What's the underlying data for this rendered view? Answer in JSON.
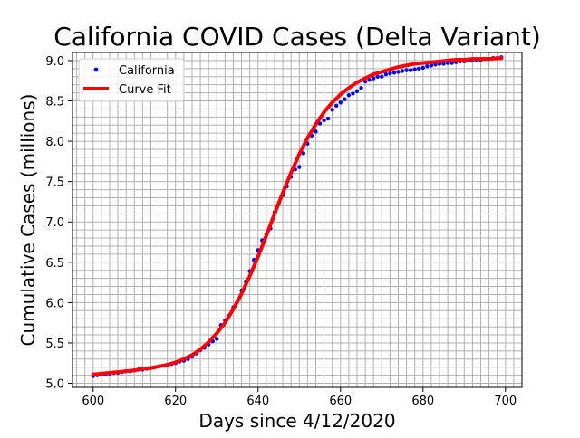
{
  "chart_data": {
    "type": "line",
    "title": "California COVID Cases (Delta Variant)",
    "xlabel": "Days since 4/12/2020",
    "ylabel": "Cumulative Cases (millions)",
    "xlim": [
      595,
      704
    ],
    "ylim": [
      4.95,
      9.1
    ],
    "xticks": [
      600,
      620,
      640,
      660,
      680,
      700
    ],
    "yticks": [
      5.0,
      5.5,
      6.0,
      6.5,
      7.0,
      7.5,
      8.0,
      8.5,
      9.0
    ],
    "x_minor_step": 2,
    "y_minor_step": 0.1,
    "grid": "major-and-minor",
    "legend_position": "top-left",
    "series": [
      {
        "name": "California",
        "style": "points",
        "color": "#0000ff",
        "x": [
          600,
          601,
          602,
          603,
          604,
          605,
          606,
          607,
          608,
          609,
          610,
          611,
          612,
          613,
          614,
          615,
          616,
          617,
          618,
          619,
          620,
          621,
          622,
          623,
          624,
          625,
          626,
          627,
          628,
          629,
          630,
          631,
          632,
          633,
          634,
          635,
          636,
          637,
          638,
          639,
          640,
          641,
          642,
          643,
          644,
          645,
          646,
          647,
          648,
          649,
          650,
          651,
          652,
          653,
          654,
          655,
          656,
          657,
          658,
          659,
          660,
          661,
          662,
          663,
          664,
          665,
          666,
          667,
          668,
          669,
          670,
          671,
          672,
          673,
          674,
          675,
          676,
          677,
          678,
          679,
          680,
          681,
          682,
          683,
          684,
          685,
          686,
          687,
          688,
          689,
          690,
          691,
          692,
          693,
          694,
          695,
          696,
          697,
          698,
          699
        ],
        "y": [
          5.09,
          5.1,
          5.11,
          5.11,
          5.12,
          5.13,
          5.13,
          5.14,
          5.15,
          5.15,
          5.16,
          5.17,
          5.17,
          5.18,
          5.19,
          5.2,
          5.21,
          5.22,
          5.23,
          5.24,
          5.25,
          5.27,
          5.28,
          5.3,
          5.33,
          5.37,
          5.41,
          5.44,
          5.48,
          5.52,
          5.55,
          5.72,
          5.78,
          5.84,
          5.94,
          6.02,
          6.15,
          6.26,
          6.39,
          6.53,
          6.65,
          6.77,
          6.85,
          6.92,
          7.12,
          7.23,
          7.33,
          7.44,
          7.56,
          7.65,
          7.68,
          7.85,
          7.97,
          8.07,
          8.12,
          8.22,
          8.26,
          8.28,
          8.39,
          8.44,
          8.48,
          8.52,
          8.57,
          8.59,
          8.62,
          8.66,
          8.74,
          8.76,
          8.78,
          8.8,
          8.8,
          8.83,
          8.84,
          8.85,
          8.86,
          8.87,
          8.88,
          8.88,
          8.89,
          8.9,
          8.91,
          8.93,
          8.94,
          8.95,
          8.96,
          8.96,
          8.97,
          8.97,
          8.98,
          8.99,
          8.99,
          9.0,
          9.0,
          9.01,
          9.01,
          9.02,
          9.02,
          9.03,
          9.03,
          9.04
        ]
      },
      {
        "name": "Curve Fit",
        "style": "line",
        "color": "#ff0000",
        "x": [
          600,
          602,
          604,
          606,
          608,
          610,
          612,
          614,
          616,
          618,
          620,
          622,
          624,
          626,
          628,
          630,
          632,
          634,
          636,
          638,
          640,
          642,
          644,
          646,
          648,
          650,
          652,
          654,
          656,
          658,
          660,
          662,
          664,
          666,
          668,
          670,
          672,
          674,
          676,
          678,
          680,
          682,
          684,
          686,
          688,
          690,
          692,
          694,
          696,
          698,
          699
        ],
        "y": [
          5.11,
          5.12,
          5.13,
          5.14,
          5.15,
          5.16,
          5.18,
          5.19,
          5.21,
          5.23,
          5.26,
          5.3,
          5.35,
          5.42,
          5.51,
          5.62,
          5.75,
          5.92,
          6.11,
          6.33,
          6.57,
          6.83,
          7.1,
          7.36,
          7.61,
          7.84,
          8.04,
          8.21,
          8.36,
          8.48,
          8.58,
          8.66,
          8.73,
          8.78,
          8.83,
          8.86,
          8.89,
          8.92,
          8.94,
          8.96,
          8.97,
          8.98,
          8.99,
          9.0,
          9.01,
          9.01,
          9.02,
          9.02,
          9.02,
          9.03,
          9.03
        ]
      }
    ]
  }
}
